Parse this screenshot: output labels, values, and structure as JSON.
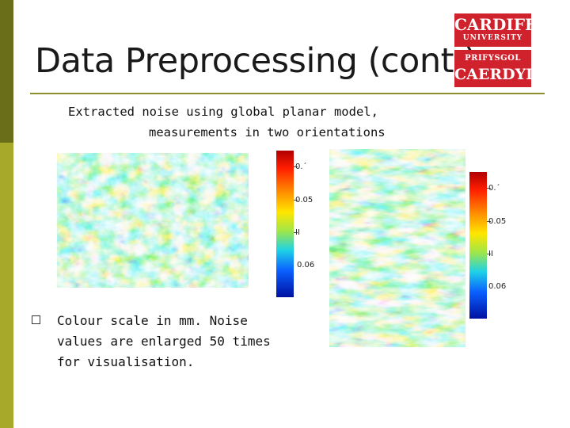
{
  "slide": {
    "title": "Data Preprocessing (cont.)",
    "caption_line1": "Extracted noise using global planar model,",
    "caption_line2": "measurements in two orientations",
    "bullet": "Colour scale in mm. Noise values are enlarged 50 times for visualisation."
  },
  "logo": {
    "line1": "CARDIFF",
    "line2": "UNIVERSITY",
    "line3": "PRIFYSGOL",
    "line4": "CAERDYD"
  },
  "colorbar_left": {
    "ticks": [
      "0.´",
      "0.05",
      "II",
      "0.06"
    ]
  },
  "colorbar_right": {
    "ticks": [
      "0.´",
      "0.05",
      "II",
      "0.06"
    ]
  },
  "colors": {
    "bar_dark": "#6b6e18",
    "bar_light": "#a7a92b",
    "logo_red": "#d0222c"
  }
}
